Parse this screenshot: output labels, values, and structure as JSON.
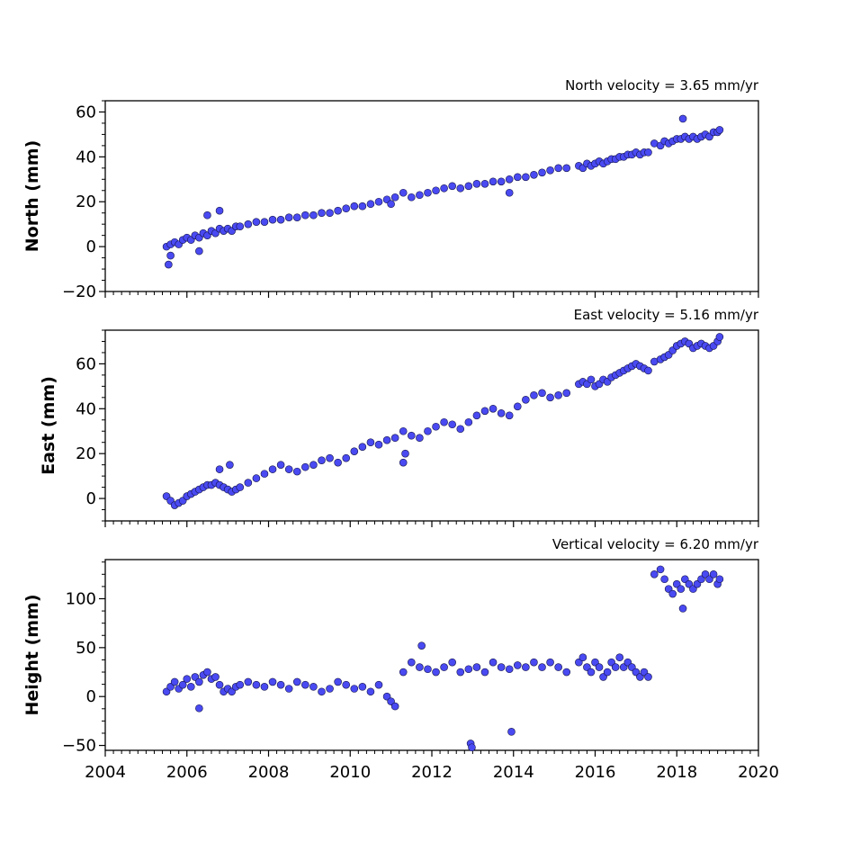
{
  "colors": {
    "marker_fill": "#4a4af2",
    "marker_edge": "#14144a",
    "axes": "#000000"
  },
  "chart_data": [
    {
      "type": "scatter",
      "subtitle": "North velocity = 3.65 mm/yr",
      "ylabel": "North (mm)",
      "xlim": [
        2004,
        2020
      ],
      "ylim": [
        -20,
        65
      ],
      "yticks": [
        -20,
        0,
        20,
        40,
        60
      ],
      "ytick_labels": [
        "−20",
        "0",
        "20",
        "40",
        "60"
      ],
      "show_xtick_labels": false,
      "grid": false,
      "series": [
        {
          "x": [
            2005.5,
            2005.6,
            2005.7,
            2005.8,
            2005.9,
            2006.0,
            2006.1,
            2006.2,
            2006.3,
            2006.4,
            2006.5,
            2006.6,
            2006.7,
            2006.8,
            2006.9,
            2007.0,
            2007.1,
            2007.2,
            2007.3,
            2007.5,
            2007.7,
            2007.9,
            2008.1,
            2008.3,
            2008.5,
            2008.7,
            2008.9,
            2009.1,
            2009.3,
            2009.5,
            2009.7,
            2009.9,
            2010.1,
            2010.3,
            2010.5,
            2010.7,
            2010.9,
            2011.1,
            2011.3,
            2011.5,
            2011.7,
            2011.9,
            2012.1,
            2012.3,
            2012.5,
            2012.7,
            2012.9,
            2013.1,
            2013.3,
            2013.5,
            2013.7,
            2013.9,
            2014.1,
            2014.3,
            2014.5,
            2014.7,
            2014.9,
            2015.1,
            2015.3,
            2015.6,
            2015.7,
            2015.8,
            2015.9,
            2016.0,
            2016.1,
            2016.2,
            2016.3,
            2016.4,
            2016.5,
            2016.6,
            2016.7,
            2016.8,
            2016.9,
            2017.0,
            2017.1,
            2017.2,
            2017.3,
            2017.45,
            2017.6,
            2017.7,
            2017.8,
            2017.9,
            2018.0,
            2018.1,
            2018.2,
            2018.3,
            2018.4,
            2018.5,
            2018.6,
            2018.7,
            2018.8,
            2018.9,
            2019.0,
            2019.05,
            2005.55,
            2005.6,
            2006.5,
            2006.8,
            2006.3,
            2011.0,
            2013.9,
            2018.15
          ],
          "y": [
            0,
            1,
            2,
            1,
            3,
            4,
            3,
            5,
            4,
            6,
            5,
            7,
            6,
            8,
            7,
            8,
            7,
            9,
            9,
            10,
            11,
            11,
            12,
            12,
            13,
            13,
            14,
            14,
            15,
            15,
            16,
            17,
            18,
            18,
            19,
            20,
            21,
            22,
            24,
            22,
            23,
            24,
            25,
            26,
            27,
            26,
            27,
            28,
            28,
            29,
            29,
            30,
            31,
            31,
            32,
            33,
            34,
            35,
            35,
            36,
            35,
            37,
            36,
            37,
            38,
            37,
            38,
            39,
            39,
            40,
            40,
            41,
            41,
            42,
            41,
            42,
            42,
            46,
            45,
            47,
            46,
            47,
            48,
            48,
            49,
            48,
            49,
            48,
            49,
            50,
            49,
            51,
            51,
            52,
            -8,
            -4,
            14,
            16,
            -2,
            19,
            24,
            57
          ]
        }
      ]
    },
    {
      "type": "scatter",
      "subtitle": "East velocity = 5.16 mm/yr",
      "ylabel": "East (mm)",
      "xlim": [
        2004,
        2020
      ],
      "ylim": [
        -10,
        75
      ],
      "yticks": [
        0,
        20,
        40,
        60
      ],
      "ytick_labels": [
        "0",
        "20",
        "40",
        "60"
      ],
      "show_xtick_labels": false,
      "grid": false,
      "series": [
        {
          "x": [
            2005.5,
            2005.6,
            2005.7,
            2005.8,
            2005.9,
            2006.0,
            2006.1,
            2006.2,
            2006.3,
            2006.4,
            2006.5,
            2006.6,
            2006.7,
            2006.8,
            2006.9,
            2007.0,
            2007.1,
            2007.2,
            2007.3,
            2007.5,
            2007.7,
            2007.9,
            2008.1,
            2008.3,
            2008.5,
            2008.7,
            2008.9,
            2009.1,
            2009.3,
            2009.5,
            2009.7,
            2009.9,
            2010.1,
            2010.3,
            2010.5,
            2010.7,
            2010.9,
            2011.1,
            2011.3,
            2011.5,
            2011.7,
            2011.9,
            2012.1,
            2012.3,
            2012.5,
            2012.7,
            2012.9,
            2013.1,
            2013.3,
            2013.5,
            2013.7,
            2013.9,
            2014.1,
            2014.3,
            2014.5,
            2014.7,
            2014.9,
            2015.1,
            2015.3,
            2015.6,
            2015.7,
            2015.8,
            2015.9,
            2016.0,
            2016.1,
            2016.2,
            2016.3,
            2016.4,
            2016.5,
            2016.6,
            2016.7,
            2016.8,
            2016.9,
            2017.0,
            2017.1,
            2017.2,
            2017.3,
            2017.45,
            2017.6,
            2017.7,
            2017.8,
            2017.9,
            2018.0,
            2018.1,
            2018.2,
            2018.3,
            2018.4,
            2018.5,
            2018.6,
            2018.7,
            2018.8,
            2018.9,
            2019.0,
            2019.05,
            2011.3,
            2011.35,
            2006.8,
            2007.05
          ],
          "y": [
            1,
            -1,
            -3,
            -2,
            -1,
            1,
            2,
            3,
            4,
            5,
            6,
            6,
            7,
            6,
            5,
            4,
            3,
            4,
            5,
            7,
            9,
            11,
            13,
            15,
            13,
            12,
            14,
            15,
            17,
            18,
            16,
            18,
            21,
            23,
            25,
            24,
            26,
            27,
            30,
            28,
            27,
            30,
            32,
            34,
            33,
            31,
            34,
            37,
            39,
            40,
            38,
            37,
            41,
            44,
            46,
            47,
            45,
            46,
            47,
            51,
            52,
            51,
            53,
            50,
            51,
            53,
            52,
            54,
            55,
            56,
            57,
            58,
            59,
            60,
            59,
            58,
            57,
            61,
            62,
            63,
            64,
            66,
            68,
            69,
            70,
            69,
            67,
            68,
            69,
            68,
            67,
            68,
            70,
            72,
            16,
            20,
            13,
            15
          ]
        }
      ]
    },
    {
      "type": "scatter",
      "subtitle": "Vertical velocity = 6.20 mm/yr",
      "ylabel": "Height (mm)",
      "xlim": [
        2004,
        2020
      ],
      "ylim": [
        -55,
        140
      ],
      "yticks": [
        -50,
        0,
        50,
        100
      ],
      "ytick_labels": [
        "−50",
        "0",
        "50",
        "100"
      ],
      "xticks": [
        2004,
        2006,
        2008,
        2010,
        2012,
        2014,
        2016,
        2018,
        2020
      ],
      "xtick_labels": [
        "2004",
        "2006",
        "2008",
        "2010",
        "2012",
        "2014",
        "2016",
        "2018",
        "2020"
      ],
      "show_xtick_labels": true,
      "grid": false,
      "series": [
        {
          "x": [
            2005.5,
            2005.6,
            2005.7,
            2005.8,
            2005.9,
            2006.0,
            2006.1,
            2006.2,
            2006.3,
            2006.4,
            2006.5,
            2006.6,
            2006.7,
            2006.8,
            2006.9,
            2007.0,
            2007.1,
            2007.2,
            2007.3,
            2007.5,
            2007.7,
            2007.9,
            2008.1,
            2008.3,
            2008.5,
            2008.7,
            2008.9,
            2009.1,
            2009.3,
            2009.5,
            2009.7,
            2009.9,
            2010.1,
            2010.3,
            2010.5,
            2010.7,
            2010.9,
            2011.0,
            2011.1,
            2011.3,
            2011.5,
            2011.7,
            2011.9,
            2012.1,
            2012.3,
            2012.5,
            2012.7,
            2012.9,
            2013.1,
            2013.3,
            2013.5,
            2013.7,
            2013.9,
            2014.1,
            2014.3,
            2014.5,
            2014.7,
            2014.9,
            2015.1,
            2015.3,
            2015.6,
            2015.7,
            2015.8,
            2015.9,
            2016.0,
            2016.1,
            2016.2,
            2016.3,
            2016.4,
            2016.5,
            2016.6,
            2016.7,
            2016.8,
            2016.9,
            2017.0,
            2017.1,
            2017.2,
            2017.3,
            2017.45,
            2017.6,
            2017.7,
            2017.8,
            2017.9,
            2018.0,
            2018.1,
            2018.2,
            2018.3,
            2018.4,
            2018.5,
            2018.6,
            2018.7,
            2018.8,
            2018.9,
            2019.0,
            2019.05,
            2012.95,
            2012.98,
            2013.95,
            2018.15,
            2006.3,
            2011.75
          ],
          "y": [
            5,
            10,
            15,
            8,
            12,
            18,
            10,
            20,
            15,
            22,
            25,
            18,
            20,
            12,
            5,
            8,
            5,
            10,
            12,
            15,
            12,
            10,
            15,
            12,
            8,
            15,
            12,
            10,
            5,
            8,
            15,
            12,
            8,
            10,
            5,
            12,
            0,
            -5,
            -10,
            25,
            35,
            30,
            28,
            25,
            30,
            35,
            25,
            28,
            30,
            25,
            35,
            30,
            28,
            32,
            30,
            35,
            30,
            35,
            30,
            25,
            35,
            40,
            30,
            25,
            35,
            30,
            20,
            25,
            35,
            30,
            40,
            30,
            35,
            30,
            25,
            20,
            25,
            20,
            125,
            130,
            120,
            110,
            105,
            115,
            110,
            120,
            115,
            110,
            115,
            120,
            125,
            120,
            125,
            115,
            120,
            -48,
            -52,
            -36,
            90,
            -12,
            52
          ]
        }
      ]
    }
  ]
}
